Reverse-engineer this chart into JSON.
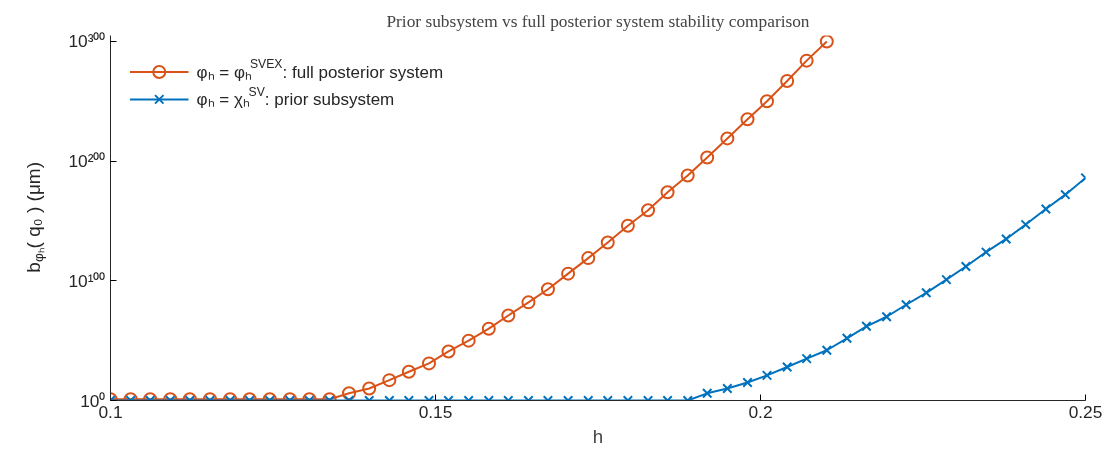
{
  "chart_data": {
    "type": "line",
    "title": "Prior subsystem vs full posterior system stability comparison",
    "xlabel": "h",
    "ylabel": "b$_{φₕ}$( q₀ ) (μm)",
    "log": "y",
    "xlim": [
      0.1,
      0.25
    ],
    "xticks": [
      0.1,
      0.15,
      0.2,
      0.25
    ],
    "ylim": [
      1,
      1e+305
    ],
    "yticks": [
      {
        "value": 1,
        "label": "10⁰"
      },
      {
        "value": 1e+100,
        "label": "10¹⁰⁰"
      },
      {
        "value": 1e+200,
        "label": "10²⁰⁰"
      },
      {
        "value": 1e+300,
        "label": "10³⁰⁰"
      }
    ],
    "grid": false,
    "legend": "top left",
    "line_style": "solid",
    "series": [
      {
        "name": "φₕ = φₕ$^{SVEX}$: full posterior system",
        "color": "#d95319",
        "marker": "circle",
        "x": [
          0.1,
          0.1031,
          0.1061,
          0.1092,
          0.1122,
          0.1153,
          0.1184,
          0.1214,
          0.1245,
          0.1276,
          0.1306,
          0.1337,
          0.1367,
          0.1398,
          0.1429,
          0.1459,
          0.149,
          0.152,
          0.1551,
          0.1582,
          0.1612,
          0.1643,
          0.1673,
          0.1704,
          0.1735,
          0.1765,
          0.1796,
          0.1827,
          0.1857,
          0.1888,
          0.1918,
          0.1949,
          0.198,
          0.201,
          0.2041,
          0.2071,
          0.2102
        ],
        "values": [
          10.0,
          10.0,
          10.0,
          10.0,
          10.0,
          10.0,
          10.0,
          10.0,
          10.0,
          10.0,
          10.0,
          10.0,
          1000000.0,
          10000000000.0,
          1e+17,
          1e+24,
          1e+31,
          1e+41,
          1e+50,
          1e+60,
          1e+71,
          1e+82,
          1e+93,
          1e+106,
          1e+119,
          1e+132,
          1e+146,
          1e+159,
          1e+174,
          1e+188,
          1e+203,
          1e+219,
          1e+235,
          1e+250,
          1e+267,
          1e+284,
          1e+300
        ]
      },
      {
        "name": "φₕ = χₕ$^{SV}$: prior subsystem",
        "color": "#0072bd",
        "marker": "cross",
        "x": [
          0.1,
          0.1031,
          0.1061,
          0.1092,
          0.1122,
          0.1153,
          0.1184,
          0.1214,
          0.1245,
          0.1276,
          0.1306,
          0.1337,
          0.1367,
          0.1398,
          0.1429,
          0.1459,
          0.149,
          0.152,
          0.1551,
          0.1582,
          0.1612,
          0.1643,
          0.1673,
          0.1704,
          0.1735,
          0.1765,
          0.1796,
          0.1827,
          0.1857,
          0.1888,
          0.1918,
          0.1949,
          0.198,
          0.201,
          0.2041,
          0.2071,
          0.2102,
          0.2133,
          0.2163,
          0.2194,
          0.2224,
          0.2255,
          0.2286,
          0.2316,
          0.2347,
          0.2378,
          0.2408,
          0.2439,
          0.2469,
          0.25
        ],
        "values": [
          1,
          1,
          1,
          1,
          1,
          1,
          1,
          1,
          1,
          1,
          1,
          1,
          1,
          1,
          1,
          1,
          1,
          1,
          1,
          1,
          1,
          1,
          1,
          1,
          1,
          1,
          1,
          1,
          1,
          1,
          1000000.0,
          10000000000.0,
          1000000000000000.0,
          1e+21,
          1e+28,
          1e+35,
          1e+42,
          1e+52,
          1e+62,
          1e+70,
          1e+80,
          1e+90,
          1e+101,
          1e+112,
          1e+124,
          1e+135,
          1e+147,
          1e+160,
          1e+172,
          1e+186
        ]
      }
    ]
  }
}
